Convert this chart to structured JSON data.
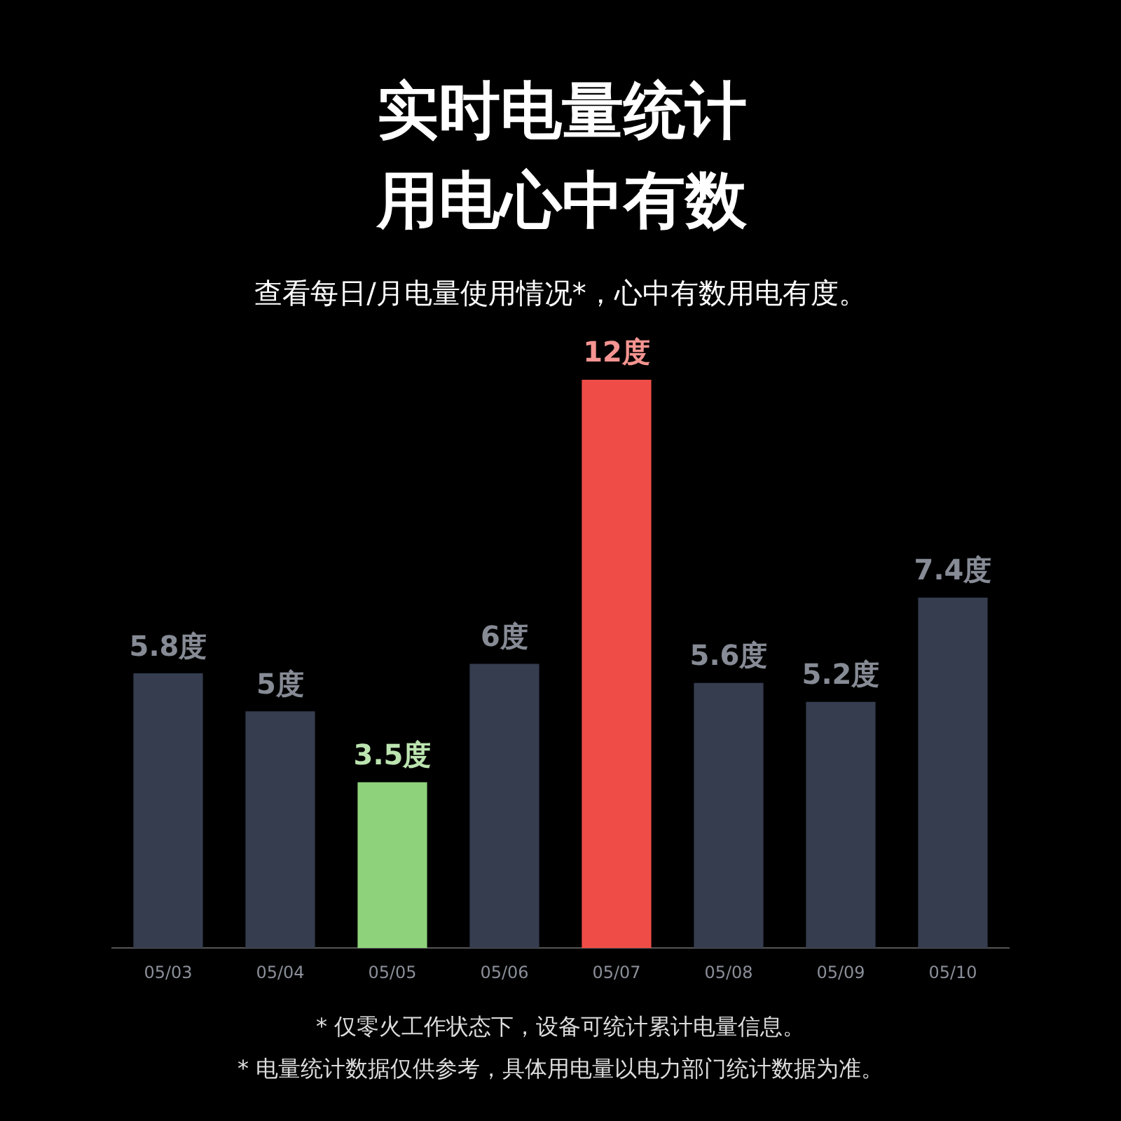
{
  "chart_data": {
    "type": "bar",
    "title": "实时电量统计用电心中有数",
    "subtitle": "查看每日/月电量使用情况*，心中有数用电有度。",
    "categories": [
      "05/03",
      "05/04",
      "05/05",
      "05/06",
      "05/07",
      "05/08",
      "05/09",
      "05/10"
    ],
    "values": [
      5.8,
      5,
      3.5,
      6,
      12,
      5.6,
      5.2,
      7.4
    ],
    "colors": [
      "#353d4f",
      "#353d4f",
      "#8fd27c",
      "#353d4f",
      "#ef4c48",
      "#353d4f",
      "#353d4f",
      "#353d4f"
    ],
    "value_labels": [
      "5.8度",
      "5度",
      "3.5度",
      "6度",
      "12度",
      "5.6度",
      "5.2度",
      "7.4度"
    ],
    "annotations": [
      "* 仅零火工作状态下，设备可统计累计电量信息。",
      "* 电量统计数据仅供参考，具体用电量以电力部门统计数据为准。"
    ],
    "grid": false,
    "legend": false
  }
}
